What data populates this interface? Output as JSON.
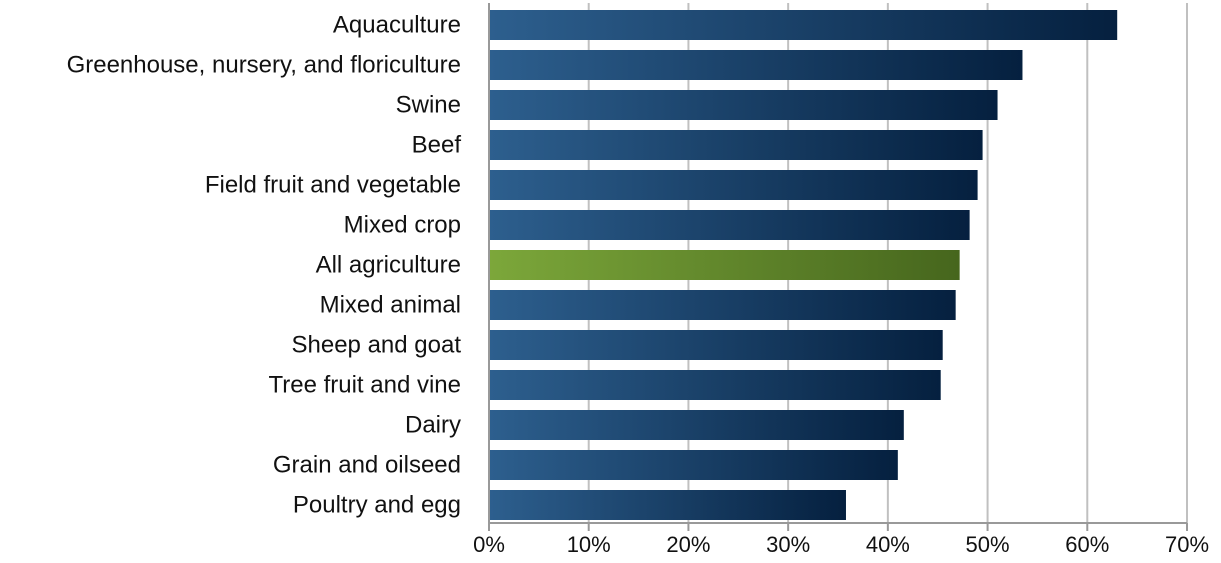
{
  "chart_data": {
    "type": "bar",
    "orientation": "horizontal",
    "title": "",
    "xlabel": "",
    "ylabel": "",
    "categories": [
      "Aquaculture",
      "Greenhouse, nursery, and floriculture",
      "Swine",
      "Beef",
      "Field fruit and vegetable",
      "Mixed crop",
      "All agriculture",
      "Mixed animal",
      "Sheep and goat",
      "Tree fruit and vine",
      "Dairy",
      "Grain and oilseed",
      "Poultry and egg"
    ],
    "values": [
      0.63,
      0.535,
      0.51,
      0.495,
      0.49,
      0.482,
      0.472,
      0.468,
      0.455,
      0.453,
      0.416,
      0.41,
      0.358
    ],
    "highlight_category": "All agriculture",
    "xlim": [
      0,
      0.7
    ],
    "xticks": [
      0,
      0.1,
      0.2,
      0.3,
      0.4,
      0.5,
      0.6,
      0.7
    ],
    "xtick_labels": [
      "0%",
      "10%",
      "20%",
      "30%",
      "40%",
      "50%",
      "60%",
      "70%"
    ],
    "grid": "vertical",
    "colors": {
      "bar_start": "#2d5f8e",
      "bar_end": "#05203f",
      "highlight_start": "#7ca73a",
      "highlight_end": "#46661d",
      "grid": "#c0c0c0",
      "axis": "#999999"
    }
  }
}
